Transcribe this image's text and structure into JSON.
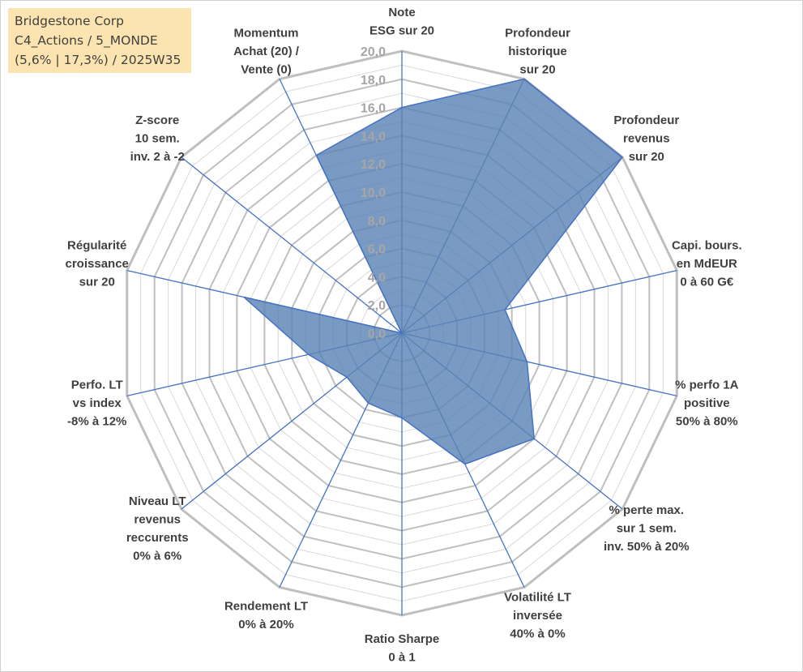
{
  "info_box": {
    "line1": "Bridgestone Corp",
    "line2": "C4_Actions / 5_MONDE",
    "line3": "(5,6% | 17,3%) / 2025W35"
  },
  "colors": {
    "fill": "#5b84b4",
    "stroke": "#4472c4",
    "outer_grid": "#bfbfbf",
    "inner_grid": "#d9d9d9",
    "spoke": "#4472c4",
    "info_bg": "#fce4b0"
  },
  "chart_data": {
    "type": "radar",
    "title": "",
    "rlim": [
      0,
      20
    ],
    "r_ticks": [
      "0,0",
      "2,0",
      "4,0",
      "6,0",
      "8,0",
      "10,0",
      "12,0",
      "14,0",
      "16,0",
      "18,0",
      "20,0"
    ],
    "grid": true,
    "categories": [
      [
        "Note",
        "ESG sur 20"
      ],
      [
        "Profondeur",
        "historique",
        "sur 20"
      ],
      [
        "Profondeur",
        "revenus",
        "sur 20"
      ],
      [
        "Capi. bours.",
        "en MdEUR",
        "0 à 60 G€"
      ],
      [
        "% perfo 1A",
        "positive",
        "50% à 80%"
      ],
      [
        "% perte max.",
        "sur 1 sem.",
        "inv. 50% à 20%"
      ],
      [
        "Volatilité LT",
        "inversée",
        "40% à 0%"
      ],
      [
        "Ratio Sharpe",
        "0 à 1"
      ],
      [
        "Rendement LT",
        "0% à 20%"
      ],
      [
        "Niveau LT",
        "revenus",
        "reccurents",
        "0% à 6%"
      ],
      [
        "Perfo. LT",
        "vs index",
        "-8% à 12%"
      ],
      [
        "Régularité",
        "croissance",
        "sur 20"
      ],
      [
        "Z-score",
        "10 sem.",
        "inv. 2 à -2"
      ],
      [
        "Momentum",
        "Achat (20) /",
        "Vente (0)"
      ]
    ],
    "values": [
      16.0,
      20.0,
      20.0,
      7.5,
      9.1,
      12.0,
      10.3,
      6.0,
      5.5,
      5.0,
      6.8,
      11.5,
      0.0,
      14.0
    ]
  }
}
